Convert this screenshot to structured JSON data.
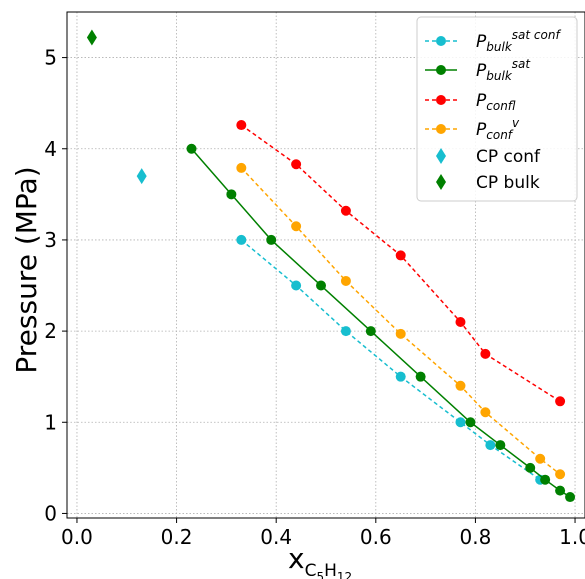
{
  "chart_data": {
    "type": "scatter",
    "title": "",
    "xlabel": {
      "base": "x",
      "sub": "C",
      "sub2": "5",
      "sub3": "H",
      "sub4": "12"
    },
    "ylabel": "Pressure (MPa)",
    "xlim": [
      -0.02,
      1.02
    ],
    "ylim": [
      -0.05,
      5.5
    ],
    "xticks": [
      0.0,
      0.2,
      0.4,
      0.6,
      0.8,
      1.0
    ],
    "xtick_labels": [
      "0.0",
      "0.2",
      "0.4",
      "0.6",
      "0.8",
      "1.0"
    ],
    "yticks": [
      0,
      1,
      2,
      3,
      4,
      5
    ],
    "ytick_labels": [
      "0",
      "1",
      "2",
      "3",
      "4",
      "5"
    ],
    "grid": true,
    "legend_position": "top-right",
    "series": [
      {
        "name_base": "P",
        "name_sub": "bulk",
        "name_sup": "sat conf",
        "color": "#17becf",
        "line": "dashed",
        "marker": "circle",
        "x": [
          0.33,
          0.44,
          0.54,
          0.65,
          0.77,
          0.83,
          0.93
        ],
        "y": [
          3.0,
          2.5,
          2.0,
          1.5,
          1.0,
          0.75,
          0.37
        ]
      },
      {
        "name_base": "P",
        "name_sub": "bulk",
        "name_sup": "sat",
        "color": "#008000",
        "line": "solid",
        "marker": "circle",
        "x": [
          0.23,
          0.31,
          0.39,
          0.49,
          0.59,
          0.69,
          0.79,
          0.85,
          0.91,
          0.94,
          0.97,
          0.99
        ],
        "y": [
          4.0,
          3.5,
          3.0,
          2.5,
          2.0,
          1.5,
          1.0,
          0.75,
          0.5,
          0.37,
          0.25,
          0.18
        ]
      },
      {
        "name_base": "P",
        "name_sub": "conf",
        "name_sup": "l",
        "color": "#ff0000",
        "line": "dashed",
        "marker": "circle",
        "x": [
          0.33,
          0.44,
          0.54,
          0.65,
          0.77,
          0.82,
          0.97
        ],
        "y": [
          4.26,
          3.83,
          3.32,
          2.83,
          2.1,
          1.75,
          1.23
        ]
      },
      {
        "name_base": "P",
        "name_sub": "conf",
        "name_sup": "v",
        "color": "#ffa500",
        "line": "dashed",
        "marker": "circle",
        "x": [
          0.33,
          0.44,
          0.54,
          0.65,
          0.77,
          0.82,
          0.93,
          0.97
        ],
        "y": [
          3.79,
          3.15,
          2.55,
          1.97,
          1.4,
          1.11,
          0.6,
          0.43
        ]
      },
      {
        "name": "CP conf",
        "color": "#17becf",
        "line": "none",
        "marker": "diamond",
        "x": [
          0.13
        ],
        "y": [
          3.7
        ]
      },
      {
        "name": "CP bulk",
        "color": "#008000",
        "line": "none",
        "marker": "diamond",
        "x": [
          0.03
        ],
        "y": [
          5.22
        ]
      }
    ]
  }
}
